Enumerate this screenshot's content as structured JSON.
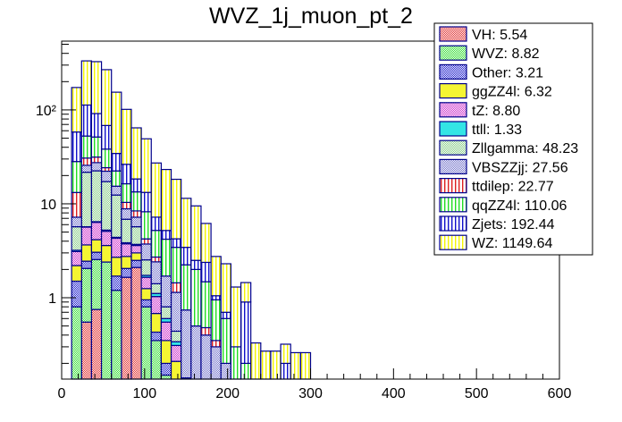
{
  "chart_data": {
    "type": "bar",
    "stacked": true,
    "title": "WVZ_1j_muon_pt_2",
    "xlabel": "",
    "ylabel": "",
    "xlim": [
      0,
      600
    ],
    "ylim": [
      0.136,
      540
    ],
    "yscale": "log",
    "bin_edges": [
      12,
      24,
      36,
      48,
      60,
      72,
      84,
      96,
      108,
      120,
      132,
      144,
      156,
      168,
      180,
      192,
      204,
      216,
      228,
      240,
      252,
      264,
      276,
      288,
      300
    ],
    "x_ticks": [
      {
        "value": 0,
        "label": "0"
      },
      {
        "value": 100,
        "label": "100"
      },
      {
        "value": 200,
        "label": "200"
      },
      {
        "value": 300,
        "label": "300"
      },
      {
        "value": 400,
        "label": "400"
      },
      {
        "value": 500,
        "label": "500"
      },
      {
        "value": 600,
        "label": "600"
      }
    ],
    "y_ticks": [
      {
        "value": 1,
        "label": "1"
      },
      {
        "value": 10,
        "label": "10"
      },
      {
        "value": 100,
        "label": "10²"
      }
    ],
    "legend_position": "top-right",
    "series": [
      {
        "name": "VH",
        "legend": "VH: 5.54",
        "fill": "#e03030",
        "pattern": "check",
        "values": [
          0,
          0.55,
          0.75,
          0,
          0,
          1.65,
          2.1,
          0,
          0,
          0,
          0,
          0,
          0,
          0,
          0,
          0,
          0,
          0,
          0,
          0,
          0,
          0,
          0,
          0
        ]
      },
      {
        "name": "WVZ",
        "legend": "WVZ: 8.82",
        "fill": "#33dd33",
        "pattern": "check",
        "values": [
          0.8,
          1.5,
          1.8,
          2.4,
          1.2,
          0.0,
          0.0,
          0.8,
          0.35,
          0.15,
          0.1,
          0.05,
          0,
          0,
          0,
          0,
          0,
          0,
          0,
          0,
          0,
          0,
          0,
          0
        ]
      },
      {
        "name": "Other",
        "legend": "Other: 3.21",
        "fill": "#2020cc",
        "pattern": "check",
        "values": [
          0.7,
          0.4,
          0.5,
          0,
          0.5,
          0.4,
          0.4,
          0.15,
          0.08,
          0.05,
          0.03,
          0.02,
          0,
          0,
          0,
          0,
          0,
          0,
          0,
          0,
          0,
          0,
          0,
          0
        ]
      },
      {
        "name": "ggZZ4l",
        "legend": "ggZZ4l: 6.32",
        "fill": "#f5f533",
        "pattern": "solid",
        "values": [
          0.7,
          1.2,
          1.1,
          1.2,
          1.0,
          0.7,
          0.5,
          0.3,
          0.25,
          0.15,
          0.08,
          0,
          0,
          0,
          0,
          0,
          0,
          0,
          0,
          0,
          0,
          0,
          0,
          0
        ]
      },
      {
        "name": "tZ",
        "legend": "tZ: 8.80",
        "fill": "#cc33cc",
        "pattern": "check",
        "values": [
          0.9,
          2.0,
          2.2,
          1.5,
          1.6,
          1.0,
          0.6,
          0.4,
          0.35,
          0.2,
          0.1,
          0.05,
          0,
          0,
          0,
          0,
          0,
          0,
          0,
          0,
          0,
          0,
          0,
          0
        ]
      },
      {
        "name": "ttll",
        "legend": "ttll: 1.33",
        "fill": "#33e5e5",
        "pattern": "solid",
        "values": [
          0.1,
          0.05,
          0.1,
          0.15,
          0.1,
          0.1,
          0.1,
          0.08,
          0.08,
          0.05,
          0.03,
          0.02,
          0,
          0,
          0,
          0,
          0,
          0,
          0,
          0,
          0,
          0,
          0,
          0
        ]
      },
      {
        "name": "Zllgamma",
        "legend": "Zllgamma: 48.23",
        "fill": "#88cc88",
        "pattern": "check",
        "values": [
          2.5,
          16,
          16,
          12,
          8,
          3,
          2,
          0.8,
          0.3,
          0.2,
          0.1,
          0,
          0,
          0,
          0,
          0,
          0,
          0,
          0,
          0,
          0,
          0,
          0,
          0
        ]
      },
      {
        "name": "VBSZZjj",
        "legend": "VBSZZjj: 27.56",
        "fill": "#7777cc",
        "pattern": "check",
        "values": [
          1.5,
          4,
          5,
          5,
          3,
          2,
          1.5,
          1.2,
          1,
          0.9,
          0.7,
          0.6,
          0.5,
          0.4,
          0.3,
          0.2,
          0,
          0,
          0,
          0,
          0,
          0,
          0,
          0
        ]
      },
      {
        "name": "ttdilep",
        "legend": "ttdilep: 22.77",
        "fill": "#dd2020",
        "pattern": "vlines",
        "values": [
          6,
          5,
          4,
          2,
          0,
          1.5,
          1.2,
          0.5,
          0.3,
          0,
          0.3,
          0,
          0,
          0.08,
          0.05,
          0,
          0,
          0,
          0,
          0,
          0,
          0,
          0,
          0
        ]
      },
      {
        "name": "qqZZ4l",
        "legend": "qqZZ4l: 110.06",
        "fill": "#22dd22",
        "pattern": "vlines",
        "values": [
          15,
          22,
          20,
          14,
          7,
          6,
          5,
          4,
          2.5,
          2.5,
          2,
          1.5,
          1.5,
          1,
          0.6,
          0.4,
          0.3,
          0.2,
          0,
          0,
          0,
          0,
          0,
          0
        ]
      },
      {
        "name": "Zjets",
        "legend": "Zjets: 192.44",
        "fill": "#1010cc",
        "pattern": "vlines",
        "values": [
          30,
          60,
          40,
          30,
          12,
          10,
          5,
          5,
          2,
          1,
          0.8,
          1.2,
          0.5,
          0.9,
          0.1,
          0.1,
          0,
          0.7,
          0,
          0,
          0,
          0.2,
          0,
          0
        ]
      },
      {
        "name": "WZ",
        "legend": "WZ: 1149.64",
        "fill": "#f5f500",
        "pattern": "vlines",
        "values": [
          115,
          220,
          235,
          200,
          120,
          75,
          46,
          36,
          20,
          18,
          14,
          8,
          7,
          3.8,
          1.7,
          1.6,
          1.0,
          0.55,
          0.33,
          0.27,
          0.27,
          0.12,
          0.26,
          0.26
        ]
      }
    ]
  }
}
